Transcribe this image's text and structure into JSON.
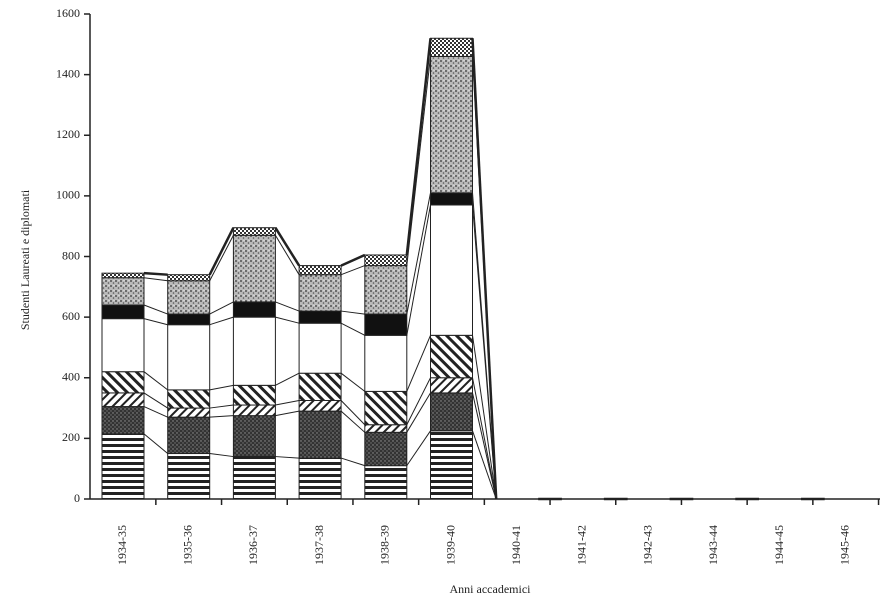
{
  "chart_data": {
    "type": "bar",
    "stacked": true,
    "y_label": "Studenti Laureati e diplomati",
    "x_label": "Anni accademici",
    "categories": [
      "1934-35",
      "1935-36",
      "1936-37",
      "1937-38",
      "1938-39",
      "1939-40",
      "1940-41",
      "1941-42",
      "1942-43",
      "1943-44",
      "1944-45",
      "1945-46"
    ],
    "ylim": [
      0,
      1600
    ],
    "yticks": [
      0,
      200,
      400,
      600,
      800,
      1000,
      1200,
      1400,
      1600
    ],
    "series": [
      {
        "color": "#222222",
        "pattern": "horizontal-stripes",
        "values": [
          215,
          150,
          140,
          135,
          110,
          225,
          0,
          0,
          0,
          0,
          0,
          0
        ]
      },
      {
        "color": "#222222",
        "pattern": "dense-dots",
        "values": [
          90,
          120,
          135,
          155,
          110,
          125,
          0,
          0,
          0,
          0,
          0,
          0
        ]
      },
      {
        "color": "#222222",
        "pattern": "light-diagonal",
        "values": [
          45,
          30,
          35,
          35,
          25,
          50,
          0,
          0,
          0,
          0,
          0,
          0
        ]
      },
      {
        "color": "#222222",
        "pattern": "heavy-diagonal",
        "values": [
          70,
          60,
          65,
          90,
          110,
          140,
          0,
          0,
          0,
          0,
          0,
          0
        ]
      },
      {
        "color": "#222222",
        "pattern": "blank",
        "values": [
          175,
          215,
          225,
          165,
          185,
          430,
          0,
          0,
          0,
          0,
          0,
          0
        ]
      },
      {
        "color": "#222222",
        "pattern": "solid",
        "values": [
          45,
          35,
          50,
          40,
          70,
          40,
          0,
          0,
          0,
          0,
          0,
          0
        ]
      },
      {
        "color": "#222222",
        "pattern": "speckled",
        "values": [
          90,
          110,
          220,
          120,
          160,
          450,
          0,
          0,
          0,
          0,
          0,
          0
        ]
      },
      {
        "color": "#222222",
        "pattern": "checker",
        "values": [
          15,
          20,
          25,
          30,
          35,
          60,
          0,
          0,
          0,
          0,
          0,
          0
        ]
      }
    ]
  }
}
